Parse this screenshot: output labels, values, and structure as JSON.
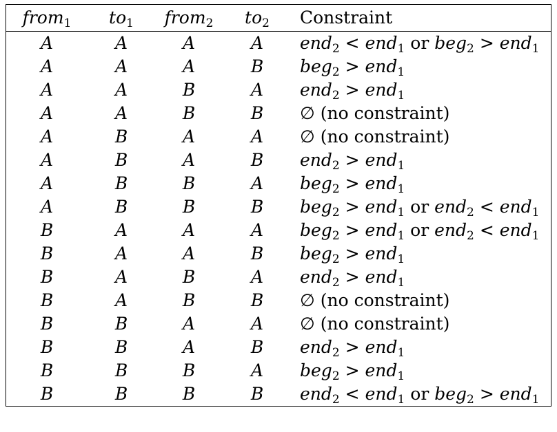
{
  "headers": [
    {
      "text": "from",
      "sub": "1",
      "italic": true
    },
    {
      "text": "to",
      "sub": "1",
      "italic": true
    },
    {
      "text": "from",
      "sub": "2",
      "italic": true
    },
    {
      "text": "to",
      "sub": "2",
      "italic": true
    },
    {
      "text": "Constraint",
      "sub": "",
      "italic": false
    }
  ],
  "rows": [
    {
      "from1": "A",
      "to1": "A",
      "from2": "A",
      "to2": "A",
      "constraint": "end₂ < end₁ or beg₂ > end₁"
    },
    {
      "from1": "A",
      "to1": "A",
      "from2": "A",
      "to2": "B",
      "constraint": "beg₂ > end₁"
    },
    {
      "from1": "A",
      "to1": "A",
      "from2": "B",
      "to2": "A",
      "constraint": "end₂ > end₁"
    },
    {
      "from1": "A",
      "to1": "A",
      "from2": "B",
      "to2": "B",
      "constraint": "∅ (no constraint)"
    },
    {
      "from1": "A",
      "to1": "B",
      "from2": "A",
      "to2": "A",
      "constraint": "∅ (no constraint)"
    },
    {
      "from1": "A",
      "to1": "B",
      "from2": "A",
      "to2": "B",
      "constraint": "end₂ > end₁"
    },
    {
      "from1": "A",
      "to1": "B",
      "from2": "B",
      "to2": "A",
      "constraint": "beg₂ > end₁"
    },
    {
      "from1": "A",
      "to1": "B",
      "from2": "B",
      "to2": "B",
      "constraint": "beg₂ > end₁ or end₂ < end₁"
    },
    {
      "from1": "B",
      "to1": "A",
      "from2": "A",
      "to2": "A",
      "constraint": "beg₂ > end₁ or end₂ < end₁"
    },
    {
      "from1": "B",
      "to1": "A",
      "from2": "A",
      "to2": "B",
      "constraint": "beg₂ > end₁"
    },
    {
      "from1": "B",
      "to1": "A",
      "from2": "B",
      "to2": "A",
      "constraint": "end₂ > end₁"
    },
    {
      "from1": "B",
      "to1": "A",
      "from2": "B",
      "to2": "B",
      "constraint": "∅ (no constraint)"
    },
    {
      "from1": "B",
      "to1": "B",
      "from2": "A",
      "to2": "A",
      "constraint": "∅ (no constraint)"
    },
    {
      "from1": "B",
      "to1": "B",
      "from2": "A",
      "to2": "B",
      "constraint": "end₂ > end₁"
    },
    {
      "from1": "B",
      "to1": "B",
      "from2": "B",
      "to2": "A",
      "constraint": "beg₂ > end₁"
    },
    {
      "from1": "B",
      "to1": "B",
      "from2": "B",
      "to2": "B",
      "constraint": "end₂ < end₁ or beg₂ > end₁"
    }
  ]
}
